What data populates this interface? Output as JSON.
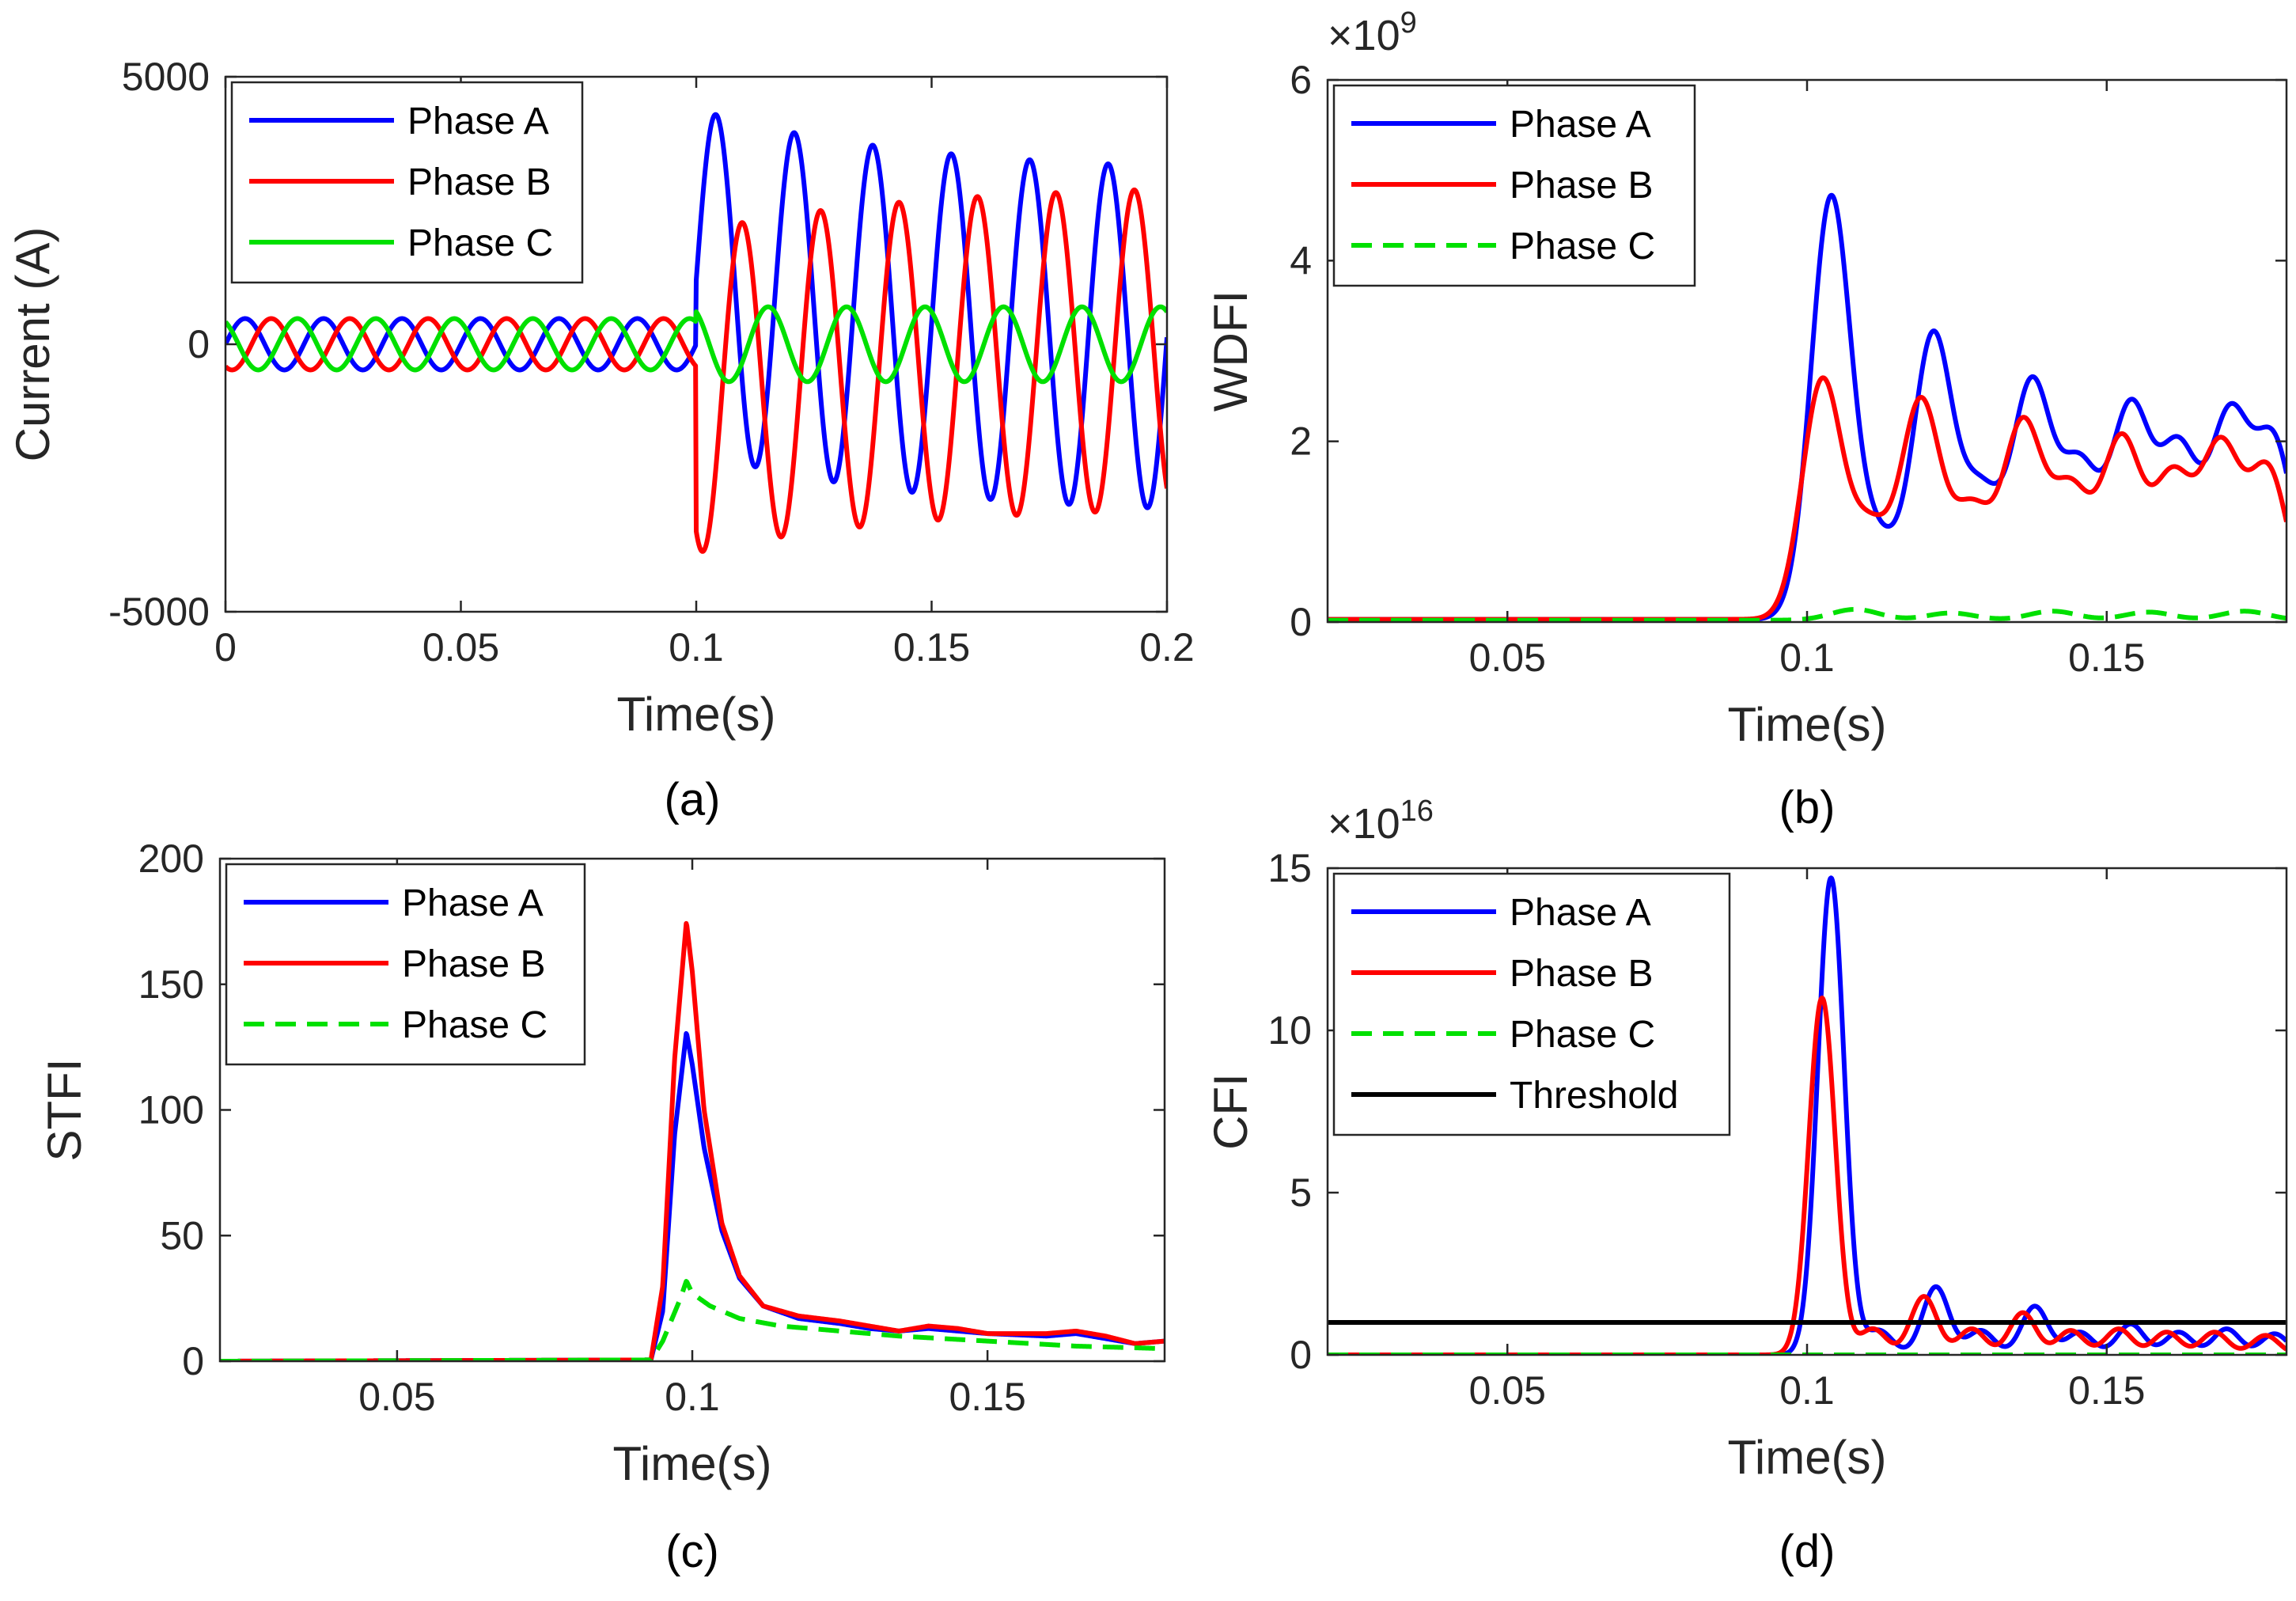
{
  "colors": {
    "phase_a": "#0000FF",
    "phase_b": "#FF0000",
    "phase_c": "#00E000",
    "threshold": "#000000",
    "axis": "#262626"
  },
  "chart_data": [
    {
      "id": "a",
      "type": "line",
      "caption": "(a)",
      "xlabel": "Time(s)",
      "ylabel": "Current (A)",
      "exponent_label": "",
      "xlim": [
        0,
        0.2
      ],
      "ylim": [
        -5000,
        5000
      ],
      "xticks": [
        0,
        0.05,
        0.1,
        0.15,
        0.2
      ],
      "xtick_labels": [
        "0",
        "0.05",
        "0.1",
        "0.15",
        "0.2"
      ],
      "yticks": [
        -5000,
        0,
        5000
      ],
      "ytick_labels": [
        "-5000",
        "0",
        "5000"
      ],
      "legend_position": "top-left",
      "legend": [
        "Phase A",
        "Phase B",
        "Phase C"
      ],
      "series": [
        {
          "name": "Phase A",
          "style": "solid",
          "color_key": "phase_a",
          "model": "sine",
          "freq_hz": 60,
          "phase_deg": 0,
          "pre_amplitude": 480,
          "fault_time": 0.1,
          "post_amplitude": 3200,
          "post_offset": 1200,
          "offset_decay_s": 0.045
        },
        {
          "name": "Phase B",
          "style": "solid",
          "color_key": "phase_b",
          "model": "sine",
          "freq_hz": 60,
          "phase_deg": -120,
          "pre_amplitude": 480,
          "fault_time": 0.1,
          "post_amplitude": 3000,
          "post_offset": -900,
          "offset_decay_s": 0.045
        },
        {
          "name": "Phase C",
          "style": "solid",
          "color_key": "phase_c",
          "model": "sine",
          "freq_hz": 60,
          "phase_deg": 120,
          "pre_amplitude": 480,
          "fault_time": 0.1,
          "post_amplitude": 700,
          "post_offset": 0,
          "offset_decay_s": 0.045
        }
      ]
    },
    {
      "id": "b",
      "type": "line",
      "caption": "(b)",
      "xlabel": "Time(s)",
      "ylabel": "WDFI",
      "exponent_label": "×10",
      "exponent_power": "9",
      "xlim": [
        0.02,
        0.18
      ],
      "ylim": [
        0,
        6
      ],
      "xticks": [
        0.05,
        0.1,
        0.15
      ],
      "xtick_labels": [
        "0.05",
        "0.1",
        "0.15"
      ],
      "yticks": [
        0,
        2,
        4,
        6
      ],
      "ytick_labels": [
        "0",
        "2",
        "4",
        "6"
      ],
      "legend_position": "top-left",
      "legend": [
        "Phase A",
        "Phase B",
        "Phase C"
      ],
      "series": [
        {
          "name": "Phase A",
          "style": "solid",
          "color_key": "phase_a",
          "baseline": 0.03,
          "width": 0.0033,
          "peaks": [
            [
              0.104,
              4.65
            ],
            [
              0.112,
              0.8
            ],
            [
              0.121,
              3.1
            ],
            [
              0.129,
              1.33
            ],
            [
              0.1375,
              2.55
            ],
            [
              0.1455,
              1.62
            ],
            [
              0.154,
              2.28
            ],
            [
              0.162,
              1.82
            ],
            [
              0.1705,
              2.17
            ],
            [
              0.178,
              1.9
            ]
          ]
        },
        {
          "name": "Phase B",
          "style": "solid",
          "color_key": "phase_b",
          "baseline": 0.03,
          "width": 0.0033,
          "peaks": [
            [
              0.1025,
              2.62
            ],
            [
              0.1105,
              0.96
            ],
            [
              0.119,
              2.38
            ],
            [
              0.1275,
              1.17
            ],
            [
              0.136,
              2.12
            ],
            [
              0.144,
              1.38
            ],
            [
              0.1525,
              1.95
            ],
            [
              0.161,
              1.52
            ],
            [
              0.169,
              1.85
            ],
            [
              0.177,
              1.62
            ]
          ]
        },
        {
          "name": "Phase C",
          "style": "dashed",
          "color_key": "phase_c",
          "baseline": 0.02,
          "width": 0.004,
          "peaks": [
            [
              0.108,
              0.12
            ],
            [
              0.124,
              0.08
            ],
            [
              0.141,
              0.1
            ],
            [
              0.157,
              0.09
            ],
            [
              0.173,
              0.1
            ]
          ]
        }
      ]
    },
    {
      "id": "c",
      "type": "line",
      "caption": "(c)",
      "xlabel": "Time(s)",
      "ylabel": "STFI",
      "exponent_label": "",
      "xlim": [
        0.02,
        0.18
      ],
      "ylim": [
        0,
        200
      ],
      "xticks": [
        0.05,
        0.1,
        0.15
      ],
      "xtick_labels": [
        "0.05",
        "0.1",
        "0.15"
      ],
      "yticks": [
        0,
        50,
        100,
        150,
        200
      ],
      "ytick_labels": [
        "0",
        "50",
        "100",
        "150",
        "200"
      ],
      "legend_position": "top-left",
      "legend": [
        "Phase A",
        "Phase B",
        "Phase C"
      ],
      "series": [
        {
          "name": "Phase A",
          "style": "solid",
          "color_key": "phase_a",
          "points": [
            [
              0.02,
              0
            ],
            [
              0.093,
              0.5
            ],
            [
              0.095,
              20
            ],
            [
              0.097,
              90
            ],
            [
              0.099,
              131
            ],
            [
              0.1,
              118
            ],
            [
              0.102,
              85
            ],
            [
              0.105,
              52
            ],
            [
              0.108,
              33
            ],
            [
              0.112,
              22
            ],
            [
              0.118,
              17
            ],
            [
              0.125,
              15
            ],
            [
              0.13,
              13
            ],
            [
              0.135,
              12
            ],
            [
              0.14,
              13
            ],
            [
              0.15,
              11
            ],
            [
              0.16,
              10
            ],
            [
              0.165,
              11
            ],
            [
              0.17,
              9
            ],
            [
              0.175,
              7
            ],
            [
              0.18,
              8
            ]
          ]
        },
        {
          "name": "Phase B",
          "style": "solid",
          "color_key": "phase_b",
          "points": [
            [
              0.02,
              0
            ],
            [
              0.093,
              0.5
            ],
            [
              0.095,
              30
            ],
            [
              0.097,
              120
            ],
            [
              0.099,
              175
            ],
            [
              0.1,
              155
            ],
            [
              0.102,
              100
            ],
            [
              0.105,
              55
            ],
            [
              0.108,
              34
            ],
            [
              0.112,
              22
            ],
            [
              0.118,
              18
            ],
            [
              0.125,
              16
            ],
            [
              0.13,
              14
            ],
            [
              0.135,
              12
            ],
            [
              0.14,
              14
            ],
            [
              0.145,
              13
            ],
            [
              0.15,
              11
            ],
            [
              0.16,
              11
            ],
            [
              0.165,
              12
            ],
            [
              0.17,
              10
            ],
            [
              0.175,
              7
            ],
            [
              0.18,
              8
            ]
          ]
        },
        {
          "name": "Phase C",
          "style": "dashed",
          "color_key": "phase_c",
          "points": [
            [
              0.02,
              0
            ],
            [
              0.093,
              0.5
            ],
            [
              0.095,
              8
            ],
            [
              0.098,
              25
            ],
            [
              0.099,
              32
            ],
            [
              0.1,
              27
            ],
            [
              0.103,
              22
            ],
            [
              0.108,
              17
            ],
            [
              0.115,
              14
            ],
            [
              0.125,
              12
            ],
            [
              0.135,
              10
            ],
            [
              0.15,
              8
            ],
            [
              0.165,
              6
            ],
            [
              0.18,
              5
            ]
          ]
        }
      ]
    },
    {
      "id": "d",
      "type": "line",
      "caption": "(d)",
      "xlabel": "Time(s)",
      "ylabel": "CFI",
      "exponent_label": "×10",
      "exponent_power": "16",
      "xlim": [
        0.02,
        0.18
      ],
      "ylim": [
        0,
        15
      ],
      "xticks": [
        0.05,
        0.1,
        0.15
      ],
      "xtick_labels": [
        "0.05",
        "0.1",
        "0.15"
      ],
      "yticks": [
        0,
        5,
        10,
        15
      ],
      "ytick_labels": [
        "0",
        "5",
        "10",
        "15"
      ],
      "legend_position": "top-left",
      "legend": [
        "Phase A",
        "Phase B",
        "Phase C",
        "Threshold"
      ],
      "series": [
        {
          "name": "Phase A",
          "style": "solid",
          "color_key": "phase_a",
          "baseline": 0,
          "width": 0.0022,
          "peaks": [
            [
              0.104,
              14.7
            ],
            [
              0.112,
              0.75
            ],
            [
              0.1215,
              2.1
            ],
            [
              0.129,
              0.75
            ],
            [
              0.138,
              1.5
            ],
            [
              0.1455,
              0.7
            ],
            [
              0.154,
              0.95
            ],
            [
              0.162,
              0.7
            ],
            [
              0.17,
              0.8
            ],
            [
              0.178,
              0.65
            ]
          ]
        },
        {
          "name": "Phase B",
          "style": "solid",
          "color_key": "phase_b",
          "baseline": 0,
          "width": 0.0022,
          "peaks": [
            [
              0.1025,
              11.0
            ],
            [
              0.111,
              0.8
            ],
            [
              0.1195,
              1.8
            ],
            [
              0.1275,
              0.8
            ],
            [
              0.136,
              1.3
            ],
            [
              0.144,
              0.75
            ],
            [
              0.152,
              0.8
            ],
            [
              0.16,
              0.7
            ],
            [
              0.168,
              0.7
            ],
            [
              0.1765,
              0.6
            ]
          ]
        },
        {
          "name": "Phase C",
          "style": "dashed",
          "color_key": "phase_c",
          "baseline": 0,
          "width": 0.004,
          "peaks": []
        },
        {
          "name": "Threshold",
          "style": "solid",
          "color_key": "threshold",
          "points": [
            [
              0.02,
              1.0
            ],
            [
              0.18,
              1.0
            ]
          ]
        }
      ]
    }
  ]
}
